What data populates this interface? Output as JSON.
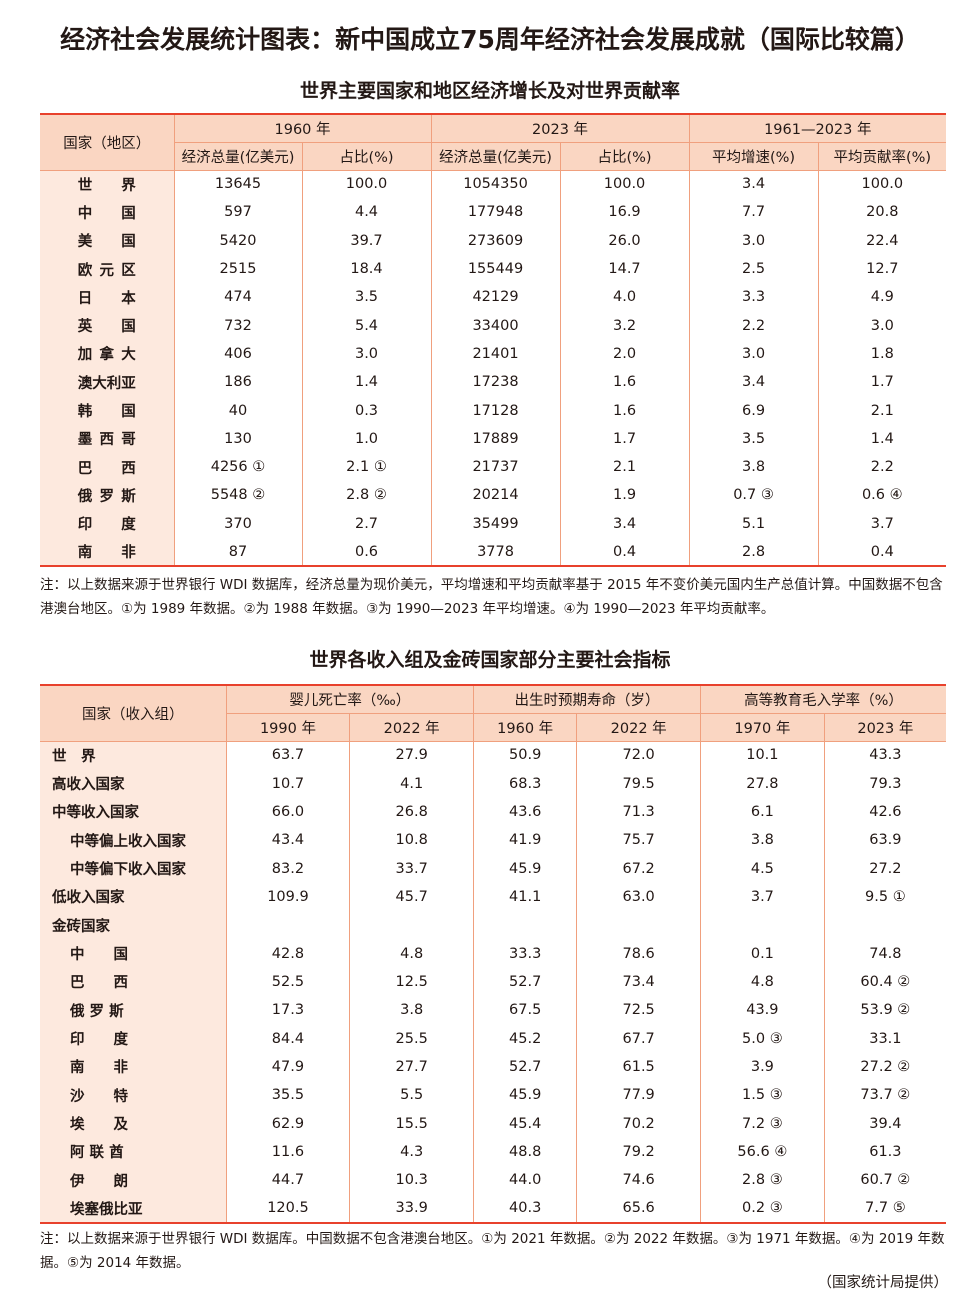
{
  "title": "经济社会发展统计图表：新中国成立75周年经济社会发展成就（国际比较篇）",
  "table1": {
    "title": "世界主要国家和地区经济增长及对世界贡献率",
    "row_header": "国家（地区）",
    "groups": [
      "1960 年",
      "2023 年",
      "1961—2023 年"
    ],
    "columns": [
      "经济总量(亿美元)",
      "占比(%)",
      "经济总量(亿美元)",
      "占比(%)",
      "平均增速(%)",
      "平均贡献率(%)"
    ],
    "rows": [
      {
        "name": "世界",
        "values": [
          "13645",
          "100.0",
          "1054350",
          "100.0",
          "3.4",
          "100.0"
        ]
      },
      {
        "name": "中国",
        "values": [
          "597",
          "4.4",
          "177948",
          "16.9",
          "7.7",
          "20.8"
        ]
      },
      {
        "name": "美国",
        "values": [
          "5420",
          "39.7",
          "273609",
          "26.0",
          "3.0",
          "22.4"
        ]
      },
      {
        "name": "欧元区",
        "values": [
          "2515",
          "18.4",
          "155449",
          "14.7",
          "2.5",
          "12.7"
        ]
      },
      {
        "name": "日本",
        "values": [
          "474",
          "3.5",
          "42129",
          "4.0",
          "3.3",
          "4.9"
        ]
      },
      {
        "name": "英国",
        "values": [
          "732",
          "5.4",
          "33400",
          "3.2",
          "2.2",
          "3.0"
        ]
      },
      {
        "name": "加拿大",
        "values": [
          "406",
          "3.0",
          "21401",
          "2.0",
          "3.0",
          "1.8"
        ]
      },
      {
        "name": "澳大利亚",
        "values": [
          "186",
          "1.4",
          "17238",
          "1.6",
          "3.4",
          "1.7"
        ]
      },
      {
        "name": "韩国",
        "values": [
          "40",
          "0.3",
          "17128",
          "1.6",
          "6.9",
          "2.1"
        ]
      },
      {
        "name": "墨西哥",
        "values": [
          "130",
          "1.0",
          "17889",
          "1.7",
          "3.5",
          "1.4"
        ]
      },
      {
        "name": "巴西",
        "values": [
          "4256 ①",
          "2.1 ①",
          "21737",
          "2.1",
          "3.8",
          "2.2"
        ]
      },
      {
        "name": "俄罗斯",
        "values": [
          "5548 ②",
          "2.8 ②",
          "20214",
          "1.9",
          "0.7 ③",
          "0.6 ④"
        ]
      },
      {
        "name": "印度",
        "values": [
          "370",
          "2.7",
          "35499",
          "3.4",
          "5.1",
          "3.7"
        ]
      },
      {
        "name": "南非",
        "values": [
          "87",
          "0.6",
          "3778",
          "0.4",
          "2.8",
          "0.4"
        ]
      }
    ],
    "note": "注：以上数据来源于世界银行 WDI 数据库，经济总量为现价美元，平均增速和平均贡献率基于 2015 年不变价美元国内生产总值计算。中国数据不包含港澳台地区。①为 1989 年数据。②为 1988 年数据。③为 1990—2023 年平均增速。④为 1990—2023 年平均贡献率。"
  },
  "table2": {
    "title": "世界各收入组及金砖国家部分主要社会指标",
    "row_header": "国家（收入组）",
    "groups": [
      "婴儿死亡率（‰）",
      "出生时预期寿命（岁）",
      "高等教育毛入学率（%）"
    ],
    "columns": [
      "1990 年",
      "2022 年",
      "1960 年",
      "2022 年",
      "1970 年",
      "2023 年"
    ],
    "rows": [
      {
        "name": "世　界",
        "level": 0,
        "values": [
          "63.7",
          "27.9",
          "50.9",
          "72.0",
          "10.1",
          "43.3"
        ]
      },
      {
        "name": "高收入国家",
        "level": 0,
        "values": [
          "10.7",
          "4.1",
          "68.3",
          "79.5",
          "27.8",
          "79.3"
        ]
      },
      {
        "name": "中等收入国家",
        "level": 0,
        "values": [
          "66.0",
          "26.8",
          "43.6",
          "71.3",
          "6.1",
          "42.6"
        ]
      },
      {
        "name": "中等偏上收入国家",
        "level": 1,
        "values": [
          "43.4",
          "10.8",
          "41.9",
          "75.7",
          "3.8",
          "63.9"
        ]
      },
      {
        "name": "中等偏下收入国家",
        "level": 1,
        "values": [
          "83.2",
          "33.7",
          "45.9",
          "67.2",
          "4.5",
          "27.2"
        ]
      },
      {
        "name": "低收入国家",
        "level": 0,
        "values": [
          "109.9",
          "45.7",
          "41.1",
          "63.0",
          "3.7",
          "9.5 ①"
        ]
      },
      {
        "name": "金砖国家",
        "level": 0,
        "values": [
          "",
          "",
          "",
          "",
          "",
          ""
        ]
      },
      {
        "name": "中　　国",
        "level": 1,
        "values": [
          "42.8",
          "4.8",
          "33.3",
          "78.6",
          "0.1",
          "74.8"
        ]
      },
      {
        "name": "巴　　西",
        "level": 1,
        "values": [
          "52.5",
          "12.5",
          "52.7",
          "73.4",
          "4.8",
          "60.4 ②"
        ]
      },
      {
        "name": "俄 罗 斯",
        "level": 1,
        "values": [
          "17.3",
          "3.8",
          "67.5",
          "72.5",
          "43.9",
          "53.9 ②"
        ]
      },
      {
        "name": "印　　度",
        "level": 1,
        "values": [
          "84.4",
          "25.5",
          "45.2",
          "67.7",
          "5.0 ③",
          "33.1"
        ]
      },
      {
        "name": "南　　非",
        "level": 1,
        "values": [
          "47.9",
          "27.7",
          "52.7",
          "61.5",
          "3.9",
          "27.2 ②"
        ]
      },
      {
        "name": "沙　　特",
        "level": 1,
        "values": [
          "35.5",
          "5.5",
          "45.9",
          "77.9",
          "1.5 ③",
          "73.7 ②"
        ]
      },
      {
        "name": "埃　　及",
        "level": 1,
        "values": [
          "62.9",
          "15.5",
          "45.4",
          "70.2",
          "7.2 ③",
          "39.4"
        ]
      },
      {
        "name": "阿 联 酋",
        "level": 1,
        "values": [
          "11.6",
          "4.3",
          "48.8",
          "79.2",
          "56.6 ④",
          "61.3"
        ]
      },
      {
        "name": "伊　　朗",
        "level": 1,
        "values": [
          "44.7",
          "10.3",
          "44.0",
          "74.6",
          "2.8 ③",
          "60.7 ②"
        ]
      },
      {
        "name": "埃塞俄比亚",
        "level": 1,
        "values": [
          "120.5",
          "33.9",
          "40.3",
          "65.6",
          "0.2 ③",
          "7.7 ⑤"
        ]
      }
    ],
    "note": "注：以上数据来源于世界银行 WDI 数据库。中国数据不包含港澳台地区。①为 2021 年数据。②为 2022 年数据。③为 1971 年数据。④为 2019 年数据。⑤为 2014 年数据。"
  },
  "credit": "（国家统计局提供）"
}
